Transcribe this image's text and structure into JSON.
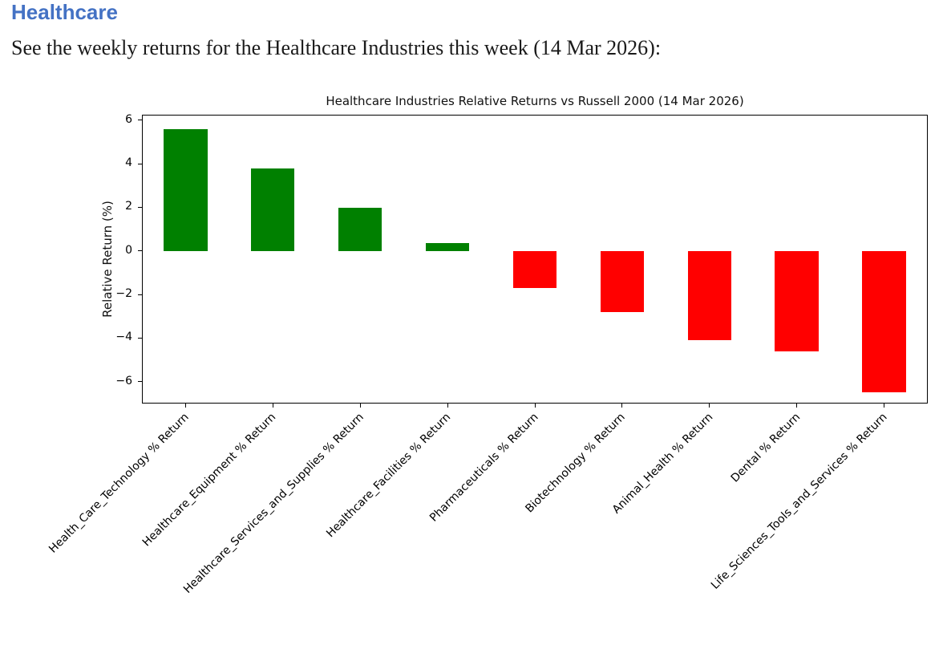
{
  "page": {
    "heading": "Healthcare",
    "heading_color": "#4472C4",
    "intro": "See the weekly returns for the Healthcare Industries this week (14 Mar 2026):"
  },
  "chart_data": {
    "type": "bar",
    "title": "Healthcare Industries Relative Returns vs Russell 2000 (14 Mar 2026)",
    "xlabel": "",
    "ylabel": "Relative Return (%)",
    "categories": [
      "Health_Care_Technology % Return",
      "Healthcare_Equipment % Return",
      "Healthcare_Services_and_Supplies % Return",
      "Healthcare_Facilities % Return",
      "Pharmaceuticals % Return",
      "Biotechnology % Return",
      "Animal_Health % Return",
      "Dental % Return",
      "Life_Sciences_Tools_and_Services % Return"
    ],
    "values": [
      5.6,
      3.8,
      2.0,
      0.35,
      -1.7,
      -2.8,
      -4.1,
      -4.6,
      -6.5
    ],
    "yticks": [
      6,
      4,
      2,
      0,
      -2,
      -4,
      -6
    ],
    "ylim": [
      -7.0,
      6.25
    ],
    "bar_width_fraction": 0.5,
    "bar_color_positive": "#008000",
    "bar_color_negative": "#ff0000",
    "tick_label_rotation": 45,
    "grid": false,
    "legend": null
  }
}
